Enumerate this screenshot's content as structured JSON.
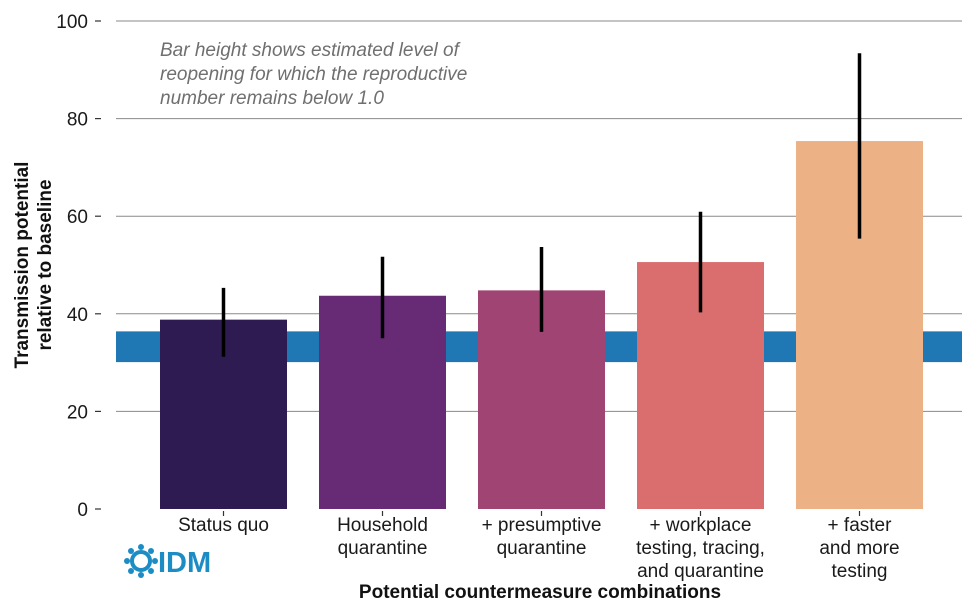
{
  "chart_data": {
    "type": "bar",
    "categories": [
      [
        "Status quo"
      ],
      [
        "Household",
        "quarantine"
      ],
      [
        "+ presumptive",
        "quarantine"
      ],
      [
        "+ workplace",
        "testing, tracing,",
        "and quarantine"
      ],
      [
        "+ faster",
        "and more",
        "testing"
      ]
    ],
    "values": [
      38.8,
      43.7,
      44.8,
      50.6,
      75.4
    ],
    "error_low": [
      31.2,
      35.0,
      36.3,
      40.3,
      55.4
    ],
    "error_high": [
      45.3,
      51.7,
      53.7,
      60.9,
      93.4
    ],
    "bar_colors": [
      "#2e1b52",
      "#672a74",
      "#a04474",
      "#da6d6d",
      "#edb186"
    ],
    "reference_band": {
      "low": 30.1,
      "high": 36.4,
      "color": "#1f77b4"
    },
    "xlabel": "Potential countermeasure combinations",
    "ylabel": [
      "Transmission potential",
      "relative to baseline"
    ],
    "ylim": [
      0,
      100
    ],
    "yticks": [
      "0",
      "20",
      "40",
      "60",
      "80",
      "100"
    ],
    "ytick_values": [
      0,
      20,
      40,
      60,
      80,
      100
    ],
    "annotation": [
      "Bar height shows estimated level of",
      "reopening for which the reproductive",
      "number remains below 1.0"
    ],
    "grid": true
  },
  "logo": {
    "text": "IDM",
    "color": "#1c8cc4"
  }
}
